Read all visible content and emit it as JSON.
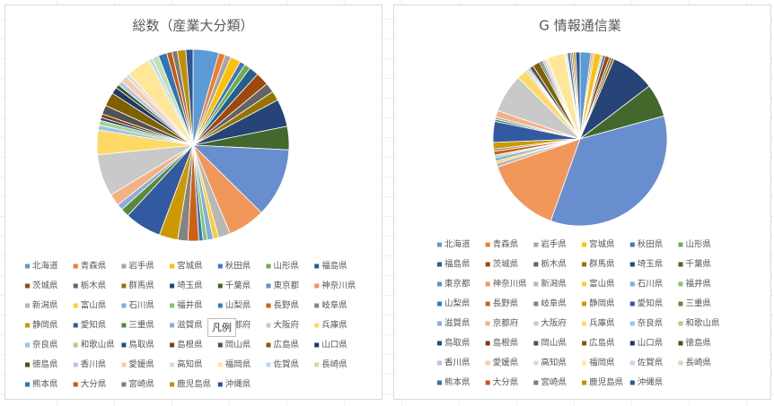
{
  "chart_data": [
    {
      "type": "pie",
      "title": "総数（産業大分類）",
      "legend": "bottom",
      "categories": [
        "北海道",
        "青森県",
        "岩手県",
        "宮城県",
        "秋田県",
        "山形県",
        "福島県",
        "茨城県",
        "栃木県",
        "群馬県",
        "埼玉県",
        "千葉県",
        "東京都",
        "神奈川県",
        "新潟県",
        "富山県",
        "石川県",
        "福井県",
        "山梨県",
        "長野県",
        "岐阜県",
        "静岡県",
        "愛知県",
        "三重県",
        "滋賀県",
        "京都府",
        "大阪府",
        "兵庫県",
        "奈良県",
        "和歌山県",
        "鳥取県",
        "島根県",
        "岡山県",
        "広島県",
        "山口県",
        "徳島県",
        "香川県",
        "愛媛県",
        "高知県",
        "福岡県",
        "佐賀県",
        "長崎県",
        "熊本県",
        "大分県",
        "宮崎県",
        "鹿児島県",
        "沖縄県"
      ],
      "values": [
        4.3,
        1.1,
        1.0,
        1.7,
        0.9,
        1.0,
        1.6,
        2.2,
        1.6,
        1.6,
        4.6,
        3.9,
        11.5,
        6.2,
        2.0,
        0.9,
        1.0,
        0.7,
        0.7,
        1.8,
        1.7,
        3.1,
        6.1,
        1.4,
        1.0,
        2.0,
        7.0,
        4.1,
        0.8,
        0.8,
        0.5,
        0.6,
        1.5,
        2.3,
        1.1,
        0.6,
        0.8,
        1.1,
        0.6,
        4.0,
        0.6,
        1.1,
        1.4,
        0.9,
        0.9,
        1.4,
        1.2
      ],
      "colors": [
        "#5B9BD5",
        "#ED7D31",
        "#A5A5A5",
        "#FFC000",
        "#4472C4",
        "#70AD47",
        "#255E91",
        "#9E480E",
        "#636363",
        "#997300",
        "#264478",
        "#43682B",
        "#698ED0",
        "#F1975A",
        "#B7B7B7",
        "#FFCD33",
        "#7CAFDD",
        "#8CC168",
        "#327DC2",
        "#D26012",
        "#848484",
        "#CC9A00",
        "#335AA1",
        "#5A8A39",
        "#8FAADC",
        "#F4B183",
        "#C9C9C9",
        "#FFD966",
        "#9DC3E6",
        "#A9D18E",
        "#1F4E79",
        "#843C0C",
        "#525252",
        "#7F6000",
        "#203864",
        "#385723",
        "#B4C7E7",
        "#F8CBAD",
        "#DBDBDB",
        "#FFE699",
        "#BDD7EE",
        "#C5E0B4",
        "#2E75B6",
        "#C55A11",
        "#7B7B7B",
        "#BF9000",
        "#2F5597"
      ]
    },
    {
      "type": "pie",
      "title": "G 情報通信業",
      "legend": "bottom",
      "categories": [
        "北海道",
        "青森県",
        "岩手県",
        "宮城県",
        "秋田県",
        "山形県",
        "福島県",
        "茨城県",
        "栃木県",
        "群馬県",
        "埼玉県",
        "千葉県",
        "東京都",
        "神奈川県",
        "新潟県",
        "富山県",
        "石川県",
        "福井県",
        "山梨県",
        "長野県",
        "岐阜県",
        "静岡県",
        "愛知県",
        "三重県",
        "滋賀県",
        "京都府",
        "大阪府",
        "兵庫県",
        "奈良県",
        "和歌山県",
        "鳥取県",
        "島根県",
        "岡山県",
        "広島県",
        "山口県",
        "徳島県",
        "香川県",
        "愛媛県",
        "高知県",
        "福岡県",
        "佐賀県",
        "長崎県",
        "熊本県",
        "大分県",
        "宮崎県",
        "鹿児島県",
        "沖縄県"
      ],
      "values": [
        2.0,
        0.3,
        0.3,
        1.2,
        0.2,
        0.2,
        0.4,
        0.8,
        0.4,
        0.5,
        8.0,
        6.0,
        34.0,
        14.0,
        0.7,
        0.4,
        0.6,
        0.3,
        0.2,
        0.7,
        0.4,
        1.2,
        3.8,
        0.4,
        0.4,
        1.2,
        7.0,
        1.8,
        0.3,
        0.2,
        0.2,
        0.2,
        0.7,
        1.3,
        0.3,
        0.3,
        0.4,
        0.4,
        0.2,
        3.2,
        0.2,
        0.3,
        0.5,
        0.3,
        0.3,
        0.4,
        0.8
      ],
      "colors": [
        "#5B9BD5",
        "#ED7D31",
        "#A5A5A5",
        "#FFC000",
        "#4472C4",
        "#70AD47",
        "#255E91",
        "#9E480E",
        "#636363",
        "#997300",
        "#264478",
        "#43682B",
        "#698ED0",
        "#F1975A",
        "#B7B7B7",
        "#FFCD33",
        "#7CAFDD",
        "#8CC168",
        "#327DC2",
        "#D26012",
        "#848484",
        "#CC9A00",
        "#335AA1",
        "#5A8A39",
        "#8FAADC",
        "#F4B183",
        "#C9C9C9",
        "#FFD966",
        "#9DC3E6",
        "#A9D18E",
        "#1F4E79",
        "#843C0C",
        "#525252",
        "#7F6000",
        "#203864",
        "#385723",
        "#B4C7E7",
        "#F8CBAD",
        "#DBDBDB",
        "#FFE699",
        "#BDD7EE",
        "#C5E0B4",
        "#2E75B6",
        "#C55A11",
        "#7B7B7B",
        "#BF9000",
        "#2F5597"
      ]
    }
  ],
  "tooltip": "凡例"
}
